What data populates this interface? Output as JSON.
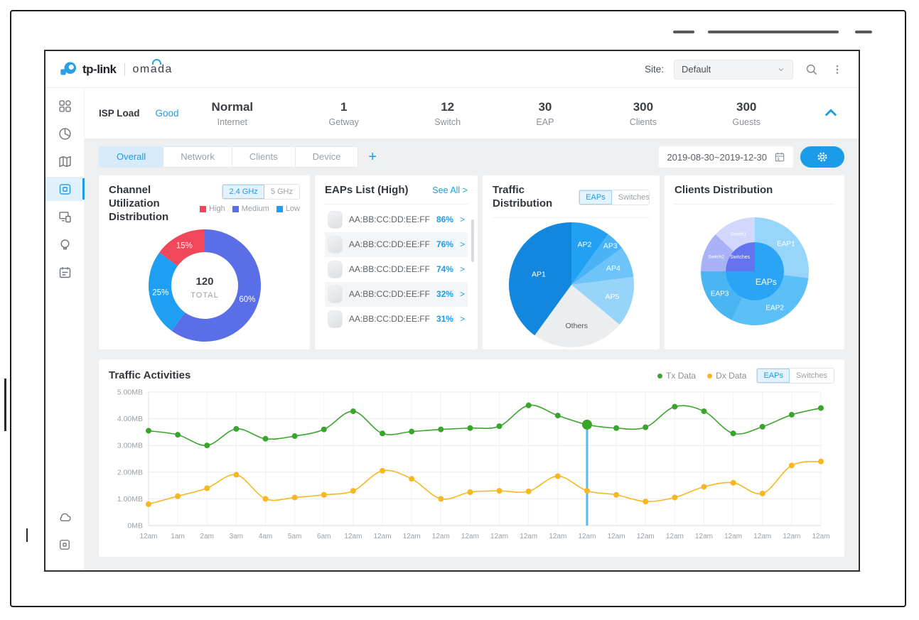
{
  "header": {
    "brand_name": "tp-link",
    "product_name": "omada",
    "site_label": "Site:",
    "site_value": "Default"
  },
  "sidebar": {
    "items": [
      "dashboard",
      "statistics",
      "map",
      "devices",
      "clients",
      "hotspot",
      "log"
    ],
    "active_item": "devices",
    "bottom_items": [
      "cloud",
      "frame"
    ]
  },
  "stats_bar": {
    "isp_label": "ISP Load",
    "isp_status": "Good",
    "stats": [
      {
        "value": "Normal",
        "label": "Internet"
      },
      {
        "value": "1",
        "label": "Getway"
      },
      {
        "value": "12",
        "label": "Switch"
      },
      {
        "value": "30",
        "label": "EAP"
      },
      {
        "value": "300",
        "label": "Clients"
      },
      {
        "value": "300",
        "label": "Guests"
      }
    ]
  },
  "tabs": {
    "items": [
      "Overall",
      "Network",
      "Clients",
      "Device"
    ],
    "active": "Overall",
    "add_label": "+",
    "date_range": "2019-08-30~2019-12-30"
  },
  "cards": {
    "channel_utilization": {
      "title": "Channel Utilization Distribution",
      "band_toggle": [
        "2.4 GHz",
        "5 GHz"
      ],
      "band_active": "2.4 GHz",
      "legend": [
        {
          "label": "High",
          "color": "#f2475a"
        },
        {
          "label": "Medium",
          "color": "#5a6ee8"
        },
        {
          "label": "Low",
          "color": "#1e9ff2"
        }
      ]
    },
    "eaps_list": {
      "title": "EAPs List (High)",
      "see_all": "See All >",
      "row_arrow": ">",
      "rows": [
        {
          "mac": "AA:BB:CC:DD:EE:FF",
          "percent": "86%"
        },
        {
          "mac": "AA:BB:CC:DD:EE:FF",
          "percent": "76%"
        },
        {
          "mac": "AA:BB:CC:DD:EE:FF",
          "percent": "74%"
        },
        {
          "mac": "AA:BB:CC:DD:EE:FF",
          "percent": "32%"
        },
        {
          "mac": "AA:BB:CC:DD:EE:FF",
          "percent": "31%"
        }
      ]
    },
    "traffic_distribution": {
      "title": "Traffic Distribution",
      "device_toggle": [
        "EAPs",
        "Switches"
      ],
      "device_active": "EAPs"
    },
    "clients_distribution": {
      "title": "Clients Distribution"
    }
  },
  "traffic_activities": {
    "title": "Traffic Activities",
    "legend": [
      {
        "label": "Tx Data",
        "color": "#39a52b"
      },
      {
        "label": "Dx Data",
        "color": "#f6b722"
      }
    ],
    "device_toggle": [
      "EAPs",
      "Switches"
    ],
    "device_active": "EAPs"
  },
  "chart_data": [
    {
      "id": "channel-utilization-donut",
      "type": "pie",
      "donut": true,
      "title": "Channel Utilization Distribution (2.4 GHz)",
      "center": {
        "value": "120",
        "label": "TOTAL"
      },
      "slices": [
        {
          "label": "Medium",
          "value": 60,
          "display": "60%",
          "color": "#5a6ee8",
          "text": "#ffffff"
        },
        {
          "label": "Low",
          "value": 25,
          "display": "25%",
          "color": "#1e9ff2",
          "text": "#ffffff"
        },
        {
          "label": "High",
          "value": 15,
          "display": "15%",
          "color": "#f2475a",
          "text": "#ffffff"
        }
      ]
    },
    {
      "id": "traffic-distribution-pie",
      "type": "pie",
      "donut": false,
      "title": "Traffic Distribution (EAPs)",
      "slices": [
        {
          "label": "AP2",
          "value": 10,
          "color": "#22a1f2",
          "text": "#ffffff",
          "label_r": 0.68
        },
        {
          "label": "AP3",
          "value": 5,
          "color": "#4ab3f6",
          "text": "#ffffff",
          "label_r": 0.88
        },
        {
          "label": "AP4",
          "value": 8,
          "color": "#6ec4f8",
          "text": "#ffffff",
          "label_r": 0.72
        },
        {
          "label": "AP5",
          "value": 13,
          "color": "#97d4fa",
          "text": "#ffffff",
          "label_r": 0.68
        },
        {
          "label": "Others",
          "value": 24,
          "color": "#ebedef",
          "text": "#55595e",
          "label_r": 0.66
        },
        {
          "label": "AP1",
          "value": 40,
          "color": "#1287dd",
          "text": "#ffffff",
          "label_r": 0.55
        }
      ]
    },
    {
      "id": "clients-distribution-sunburst",
      "type": "sunburst",
      "title": "Clients Distribution",
      "inner": [
        {
          "label": "EAPs",
          "value": 75,
          "color": "#2aa5f5",
          "text": "#ffffff",
          "font": 12
        },
        {
          "label": "Switches",
          "value": 25,
          "color": "#6573ef",
          "text": "#ffffff",
          "font": 7
        }
      ],
      "outer": [
        {
          "label": "EAP1",
          "value": 27,
          "color": "#98d5fb",
          "text": "#ffffff",
          "font": 10
        },
        {
          "label": "EAP2",
          "value": 30,
          "color": "#5cc0f8",
          "text": "#ffffff",
          "font": 10
        },
        {
          "label": "EAP3",
          "value": 18,
          "color": "#49b5f1",
          "text": "#ffffff",
          "font": 10
        },
        {
          "label": "Switch2",
          "value": 12,
          "color": "#a9b2f6",
          "text": "#ffffff",
          "font": 6.5
        },
        {
          "label": "Switch1",
          "value": 13,
          "color": "#d2d8fc",
          "text": "#ffffff",
          "font": 6.5
        }
      ]
    },
    {
      "id": "traffic-activities-line",
      "type": "line",
      "title": "Traffic Activities",
      "x_labels": [
        "12am",
        "1am",
        "2am",
        "3am",
        "4am",
        "5am",
        "6am",
        "12am",
        "12am",
        "12am",
        "12am",
        "12am",
        "12am",
        "12am",
        "12am",
        "12am",
        "12am",
        "12am",
        "12am",
        "12am",
        "12am",
        "12am",
        "12am",
        "12am"
      ],
      "y_ticks": [
        "0MB",
        "1.00MB",
        "2.00MB",
        "3.00MB",
        "4.00MB",
        "5.00MB"
      ],
      "ylim": [
        0,
        5
      ],
      "ylabel_unit": "MB",
      "grid": true,
      "legend_position": "top-right",
      "selected_index": 15,
      "series": [
        {
          "name": "Tx Data",
          "color": "#39a52b",
          "values": [
            3.55,
            3.4,
            3.0,
            3.62,
            3.25,
            3.35,
            3.6,
            4.28,
            3.45,
            3.52,
            3.6,
            3.65,
            3.72,
            4.5,
            4.12,
            3.78,
            3.65,
            3.68,
            4.45,
            4.28,
            3.45,
            3.7,
            4.15,
            4.4
          ]
        },
        {
          "name": "Dx Data",
          "color": "#f6b722",
          "values": [
            0.8,
            1.1,
            1.4,
            1.9,
            1.0,
            1.05,
            1.15,
            1.3,
            2.05,
            1.75,
            1.0,
            1.25,
            1.3,
            1.28,
            1.85,
            1.3,
            1.15,
            0.9,
            1.05,
            1.45,
            1.6,
            1.2,
            2.25,
            2.4
          ]
        }
      ]
    }
  ]
}
